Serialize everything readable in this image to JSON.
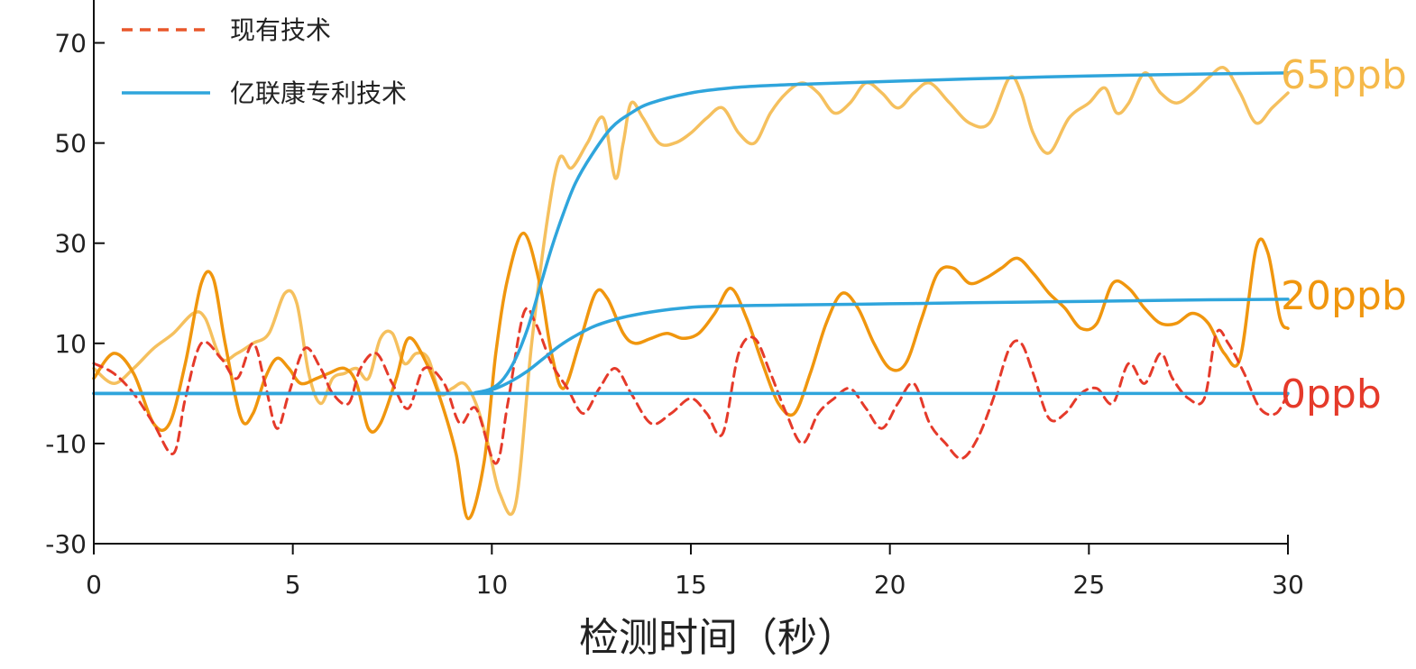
{
  "chart_data": {
    "type": "line",
    "title": "",
    "xlabel": "检测时间（秒）",
    "ylabel": "",
    "xlim": [
      0,
      30
    ],
    "ylim": [
      -30,
      80
    ],
    "x_ticks": [
      "0",
      "5",
      "10",
      "15",
      "20",
      "25",
      "30"
    ],
    "y_ticks": [
      "-30",
      "-10",
      "10",
      "30",
      "50",
      "70"
    ],
    "y_tick_values": [
      -30,
      -10,
      10,
      30,
      50,
      70
    ],
    "x_tick_values": [
      0,
      5,
      10,
      15,
      20,
      25,
      30
    ],
    "grid": false,
    "legend_position": "top-left",
    "legend": [
      {
        "label": "现有技术",
        "style": "dashed",
        "color": "#e8572a"
      },
      {
        "label": "亿联康专利技术",
        "style": "solid",
        "color": "#2fa5dc"
      }
    ],
    "series": [
      {
        "label_text": "0ppb",
        "label_color": "#e53a2a",
        "color": "#e53a2a",
        "style": "dashed",
        "x": [
          0,
          0.5,
          1,
          1.5,
          2,
          2.3,
          2.7,
          3.2,
          3.6,
          4,
          4.3,
          4.6,
          4.9,
          5.3,
          5.7,
          6,
          6.4,
          6.7,
          7.1,
          7.5,
          7.9,
          8.3,
          8.8,
          9.2,
          9.6,
          10.1,
          10.4,
          10.8,
          11.1,
          11.5,
          11.9,
          12.3,
          12.7,
          13.1,
          13.5,
          14,
          14.5,
          15,
          15.4,
          15.8,
          16.2,
          16.6,
          17,
          17.4,
          17.8,
          18.2,
          18.6,
          19,
          19.4,
          19.8,
          20.2,
          20.6,
          21,
          21.4,
          21.8,
          22.2,
          22.6,
          23,
          23.3,
          23.6,
          24,
          24.4,
          24.8,
          25.2,
          25.6,
          26,
          26.4,
          26.8,
          27.1,
          27.5,
          27.9,
          28.2,
          28.5,
          28.9,
          29.3,
          29.7,
          30
        ],
        "y": [
          6,
          4,
          0,
          -6,
          -12,
          -1,
          10,
          7,
          3,
          10,
          2,
          -7,
          0,
          9,
          5,
          0,
          -2,
          5,
          8,
          2,
          -3,
          5,
          2,
          -6,
          -3,
          -14,
          -2,
          16,
          14,
          6,
          1,
          -4,
          1,
          5,
          0,
          -6,
          -4,
          -1,
          -4,
          -8,
          8,
          11,
          4,
          -4,
          -10,
          -4,
          -1,
          1,
          -3,
          -7,
          -2,
          2,
          -6,
          -10,
          -13,
          -9,
          -1,
          9,
          10,
          4,
          -5,
          -4,
          0,
          1,
          -2,
          6,
          2,
          8,
          3,
          -1,
          -1,
          12,
          10,
          4,
          -3,
          -4,
          0
        ]
      },
      {
        "label_text": "20ppb",
        "label_color": "#f0960e",
        "color": "#f0960e",
        "style": "solid",
        "x": [
          0,
          0.5,
          1,
          1.5,
          1.9,
          2.3,
          2.7,
          3,
          3.3,
          3.7,
          4,
          4.3,
          4.6,
          4.9,
          5.2,
          5.6,
          5.9,
          6.3,
          6.6,
          6.9,
          7.2,
          7.6,
          7.9,
          8.3,
          8.7,
          9.1,
          9.4,
          9.8,
          10.1,
          10.4,
          10.8,
          11.2,
          11.5,
          11.8,
          12.2,
          12.6,
          12.9,
          13.3,
          13.6,
          14,
          14.4,
          14.8,
          15.2,
          15.6,
          16,
          16.4,
          16.8,
          17.2,
          17.6,
          18,
          18.4,
          18.8,
          19.2,
          19.6,
          20,
          20.4,
          20.8,
          21.2,
          21.6,
          22,
          22.4,
          22.8,
          23.2,
          23.6,
          24,
          24.4,
          24.8,
          25.2,
          25.6,
          26,
          26.4,
          26.8,
          27.2,
          27.6,
          28,
          28.4,
          28.8,
          29.2,
          29.5,
          29.8,
          30
        ],
        "y": [
          3,
          8,
          4,
          -6,
          -6,
          6,
          22,
          23,
          10,
          -5,
          -4,
          3,
          7,
          5,
          2,
          3,
          4,
          5,
          2,
          -7,
          -6,
          3,
          11,
          7,
          -1,
          -12,
          -25,
          -14,
          8,
          23,
          32,
          22,
          8,
          1,
          10,
          20,
          19,
          12,
          10,
          11,
          12,
          11,
          12,
          16,
          21,
          15,
          6,
          -2,
          -4,
          4,
          14,
          20,
          17,
          10,
          5,
          6,
          15,
          24,
          25,
          22,
          23,
          25,
          27,
          24,
          20,
          17,
          13,
          14,
          22,
          21,
          17,
          14,
          14,
          16,
          14,
          8,
          7,
          29,
          28,
          15,
          13
        ]
      },
      {
        "label_text": "65ppb",
        "label_color": "#f5b94a",
        "color": "#f5c05e",
        "style": "solid",
        "x": [
          0,
          0.5,
          1,
          1.5,
          2,
          2.5,
          2.8,
          3.2,
          3.6,
          4,
          4.4,
          4.8,
          5.1,
          5.4,
          5.7,
          6,
          6.3,
          6.6,
          6.9,
          7.2,
          7.5,
          7.8,
          8.1,
          8.4,
          8.7,
          9,
          9.3,
          9.6,
          9.9,
          10.2,
          10.6,
          11,
          11.4,
          11.7,
          12,
          12.4,
          12.8,
          13.1,
          13.3,
          13.5,
          13.8,
          14.2,
          14.6,
          15,
          15.4,
          15.8,
          16.2,
          16.6,
          17,
          17.4,
          17.8,
          18.2,
          18.6,
          19,
          19.4,
          19.8,
          20.2,
          20.6,
          21,
          21.5,
          22,
          22.5,
          23,
          23.3,
          23.6,
          24,
          24.5,
          25,
          25.4,
          25.7,
          26,
          26.4,
          26.8,
          27.2,
          27.6,
          28,
          28.4,
          28.8,
          29.2,
          29.6,
          30
        ],
        "y": [
          5,
          2,
          5,
          9,
          12,
          16,
          15,
          7,
          8,
          10,
          12,
          20,
          18,
          4,
          -2,
          3,
          4,
          5,
          3,
          11,
          12,
          6,
          8,
          7,
          0,
          1,
          2,
          -2,
          -10,
          -20,
          -22,
          10,
          35,
          47,
          45,
          50,
          55,
          43,
          50,
          58,
          55,
          50,
          50,
          52,
          55,
          57,
          52,
          50,
          56,
          60,
          62,
          60,
          56,
          58,
          62,
          60,
          57,
          60,
          62,
          58,
          54,
          54,
          63,
          60,
          52,
          48,
          55,
          58,
          61,
          56,
          58,
          64,
          60,
          58,
          60,
          63,
          65,
          60,
          54,
          57,
          60
        ]
      },
      {
        "label_text": "",
        "color": "#2fa5dc",
        "style": "solid",
        "x": [
          0,
          9,
          9.6,
          10,
          10.3,
          10.6,
          10.9,
          11.2,
          11.5,
          11.8,
          12.1,
          12.5,
          13,
          13.5,
          14,
          15,
          16,
          17,
          18,
          20,
          22,
          25,
          28,
          30
        ],
        "y": [
          0,
          0,
          0.2,
          1,
          3,
          7,
          13,
          21,
          29,
          36,
          42,
          47.5,
          53,
          56,
          58,
          60,
          61,
          61.5,
          61.8,
          62.3,
          62.8,
          63.4,
          63.8,
          64
        ]
      },
      {
        "label_text": "",
        "color": "#2fa5dc",
        "style": "solid",
        "x": [
          0,
          9.2,
          9.7,
          10.1,
          10.5,
          10.9,
          11.3,
          11.7,
          12.1,
          12.6,
          13.2,
          13.8,
          14.5,
          15.2,
          16,
          17,
          18,
          20,
          22,
          25,
          28,
          30
        ],
        "y": [
          0,
          0,
          0.3,
          1,
          2.5,
          4.5,
          7,
          9.5,
          11.5,
          13.5,
          15,
          16,
          16.8,
          17.3,
          17.5,
          17.6,
          17.7,
          17.9,
          18.1,
          18.4,
          18.7,
          18.8
        ]
      },
      {
        "label_text": "",
        "color": "#2fa5dc",
        "style": "solid",
        "x": [
          0,
          30
        ],
        "y": [
          0,
          0
        ]
      }
    ]
  }
}
